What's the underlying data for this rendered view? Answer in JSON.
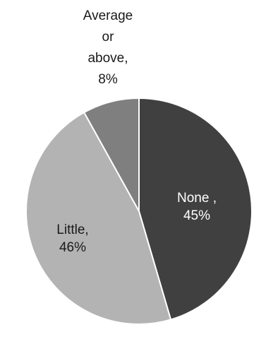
{
  "chart_data": {
    "type": "pie",
    "title": "",
    "slices": [
      {
        "name": "None",
        "value": 45,
        "label_lines": [
          "None ,",
          "45%"
        ],
        "color": "#404040",
        "label_color": "#ffffff"
      },
      {
        "name": "Little",
        "value": 46,
        "label_lines": [
          "Little,",
          "46%"
        ],
        "color": "#b3b3b3",
        "label_color": "#1a1a1a"
      },
      {
        "name": "Average or above",
        "value": 8,
        "label_lines": [
          "Average",
          "or",
          "above,",
          "8%"
        ],
        "color": "#7f7f7f",
        "label_color": "#1a1a1a"
      }
    ],
    "start_angle_deg": 0,
    "direction": "clockwise",
    "legend": "none",
    "data_labels": "category-and-percent"
  }
}
